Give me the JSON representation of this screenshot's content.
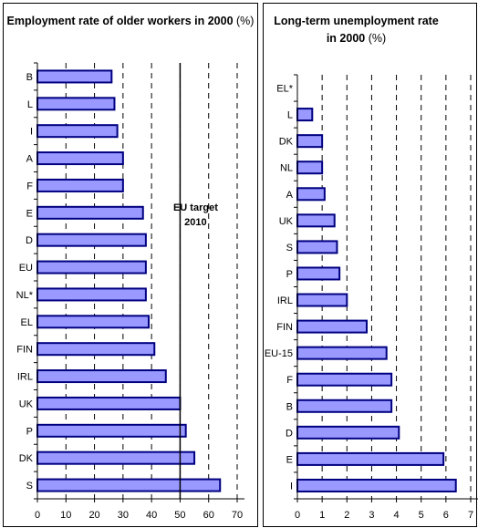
{
  "chart_data": [
    {
      "type": "bar",
      "orientation": "horizontal",
      "title_bold": "Employment rate of older workers in 2000",
      "title_unit": "(%)",
      "categories": [
        "B",
        "L",
        "I",
        "A",
        "F",
        "E",
        "D",
        "EU",
        "NL*",
        "EL",
        "FIN",
        "IRL",
        "UK",
        "P",
        "DK",
        "S"
      ],
      "values": [
        26,
        27,
        28,
        30,
        30,
        37,
        38,
        38,
        38,
        39,
        41,
        45,
        50,
        52,
        55,
        64
      ],
      "xlim": [
        0,
        70
      ],
      "xticks": [
        0,
        10,
        20,
        30,
        40,
        50,
        60,
        70
      ],
      "xtick_labels": [
        "0",
        "10",
        "20",
        "30",
        "40",
        "50",
        "60",
        "70"
      ],
      "grid": "vertical dashed",
      "bar_color": "#9999ff",
      "bar_edge_color": "#000080",
      "annotation": {
        "text_line1": "EU target",
        "text_line2": "2010",
        "x_value": 50
      }
    },
    {
      "type": "bar",
      "orientation": "horizontal",
      "title_bold": "Long-term unemployment rate in 2000",
      "title_unit": "(%)",
      "categories": [
        "EL*",
        "L",
        "DK",
        "NL",
        "A",
        "UK",
        "S",
        "P",
        "IRL",
        "FIN",
        "EU-15",
        "F",
        "B",
        "D",
        "E",
        "I"
      ],
      "values": [
        null,
        0.6,
        1.0,
        1.0,
        1.1,
        1.5,
        1.6,
        1.7,
        2.0,
        2.8,
        3.6,
        3.8,
        3.8,
        4.1,
        5.9,
        6.4
      ],
      "xlim": [
        0,
        7
      ],
      "xticks": [
        0,
        1,
        2,
        3,
        4,
        5,
        6,
        7
      ],
      "xtick_labels": [
        "0",
        "1",
        "2",
        "3",
        "4",
        "5",
        "6",
        "7"
      ],
      "grid": "vertical dashed",
      "bar_color": "#9999ff",
      "bar_edge_color": "#000080"
    }
  ]
}
